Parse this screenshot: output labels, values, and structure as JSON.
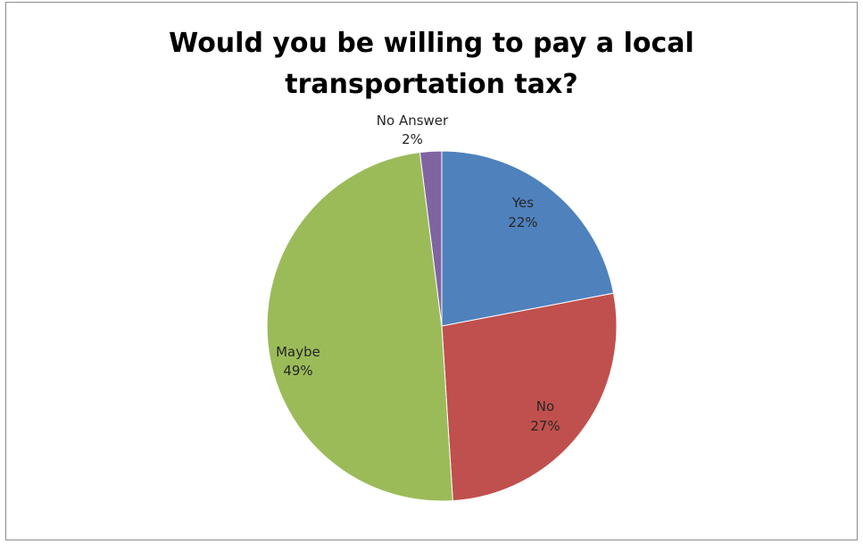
{
  "chart_data": {
    "type": "pie",
    "title_lines": [
      "Would you be willing to pay a local",
      "transportation tax?"
    ],
    "slices": [
      {
        "label": "Yes",
        "value": 22,
        "percent_label": "22%",
        "color": "#4f81bd"
      },
      {
        "label": "No",
        "value": 27,
        "percent_label": "27%",
        "color": "#c0504d"
      },
      {
        "label": "Maybe",
        "value": 49,
        "percent_label": "49%",
        "color": "#9bbb59"
      },
      {
        "label": "No Answer",
        "value": 2,
        "percent_label": "2%",
        "color": "#8064a2"
      }
    ],
    "start_angle_deg": 0,
    "direction": "clockwise",
    "legend": "none"
  }
}
